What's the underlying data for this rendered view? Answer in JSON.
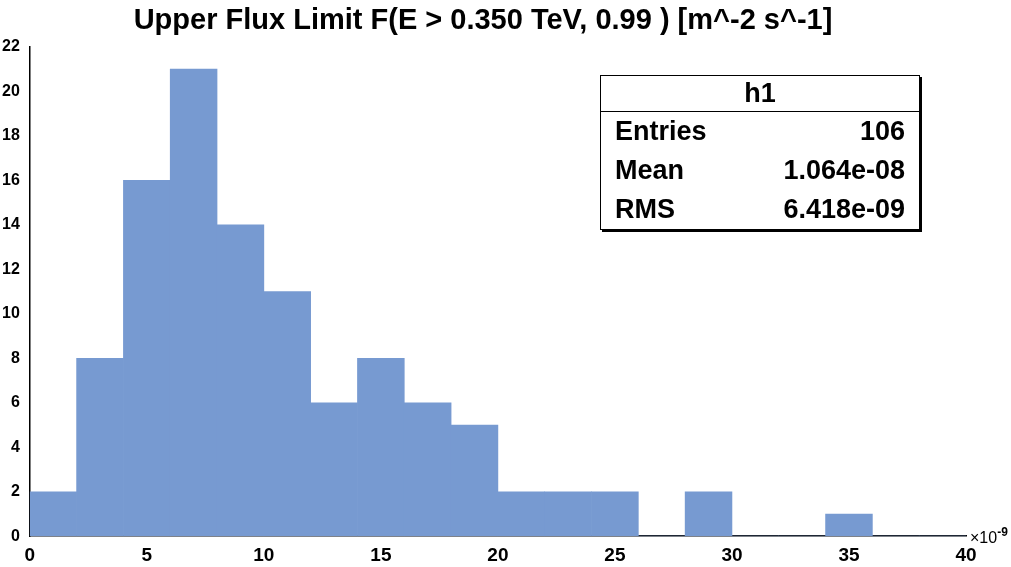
{
  "chart_data": {
    "type": "histogram",
    "title": "Upper Flux Limit F(E > 0.350 TeV, 0.99 ) [m^-2 s^-1]",
    "xlabel": "×10$^{-9}$",
    "bins": [
      0,
      2,
      4,
      6,
      8,
      10,
      12,
      14,
      16,
      18,
      20,
      22,
      24,
      26,
      28,
      30,
      32,
      34,
      36,
      38,
      40
    ],
    "values": [
      2,
      8,
      16,
      21,
      14,
      11,
      6,
      8,
      6,
      5,
      2,
      2,
      2,
      0,
      2,
      0,
      0,
      1,
      0,
      0
    ],
    "color": "#779ad1",
    "xlim": [
      0,
      40
    ],
    "xticks": [
      0,
      5,
      10,
      15,
      20,
      25,
      30,
      35,
      40
    ],
    "ylim": [
      0,
      22
    ],
    "yticks": [
      0,
      2,
      4,
      6,
      8,
      10,
      12,
      14,
      16,
      18,
      20,
      22
    ],
    "grid": false,
    "legend": false,
    "annotations": [
      "h1",
      "Entries",
      "106",
      "Mean",
      "1.064e-08",
      "RMS",
      "6.418e-09"
    ]
  }
}
